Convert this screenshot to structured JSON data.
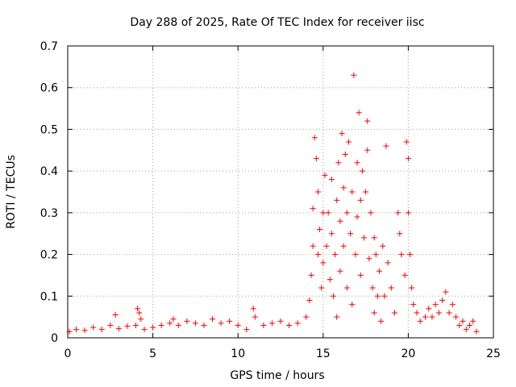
{
  "chart_data": {
    "type": "scatter",
    "title": "Day 288 of 2025, Rate Of TEC Index for receiver iisc",
    "xlabel": "GPS time / hours",
    "ylabel": "ROTI / TECUs",
    "xlim": [
      0,
      25
    ],
    "ylim": [
      0,
      0.7
    ],
    "xticks": [
      "0",
      "5",
      "10",
      "15",
      "20",
      "25"
    ],
    "yticks": [
      "0",
      "0.1",
      "0.2",
      "0.3",
      "0.4",
      "0.5",
      "0.6",
      "0.7"
    ],
    "grid": true,
    "marker": "+",
    "color": "#ff0000",
    "series": [
      {
        "name": "ROTI",
        "points": [
          [
            0.1,
            0.015
          ],
          [
            0.5,
            0.02
          ],
          [
            1.0,
            0.018
          ],
          [
            1.5,
            0.025
          ],
          [
            2.0,
            0.02
          ],
          [
            2.5,
            0.03
          ],
          [
            2.8,
            0.055
          ],
          [
            3.0,
            0.022
          ],
          [
            3.5,
            0.028
          ],
          [
            4.0,
            0.03
          ],
          [
            4.1,
            0.07
          ],
          [
            4.2,
            0.06
          ],
          [
            4.3,
            0.045
          ],
          [
            4.5,
            0.02
          ],
          [
            5.0,
            0.025
          ],
          [
            5.5,
            0.03
          ],
          [
            6.0,
            0.035
          ],
          [
            6.2,
            0.045
          ],
          [
            6.5,
            0.03
          ],
          [
            7.0,
            0.04
          ],
          [
            7.5,
            0.035
          ],
          [
            8.0,
            0.03
          ],
          [
            8.5,
            0.045
          ],
          [
            9.0,
            0.035
          ],
          [
            9.5,
            0.04
          ],
          [
            10.0,
            0.03
          ],
          [
            10.5,
            0.02
          ],
          [
            10.9,
            0.07
          ],
          [
            11.0,
            0.05
          ],
          [
            11.5,
            0.03
          ],
          [
            12.0,
            0.035
          ],
          [
            12.5,
            0.04
          ],
          [
            13.0,
            0.03
          ],
          [
            13.5,
            0.035
          ],
          [
            14.0,
            0.05
          ],
          [
            14.2,
            0.09
          ],
          [
            14.3,
            0.15
          ],
          [
            14.4,
            0.22
          ],
          [
            14.4,
            0.31
          ],
          [
            14.5,
            0.48
          ],
          [
            14.6,
            0.43
          ],
          [
            14.7,
            0.35
          ],
          [
            14.7,
            0.2
          ],
          [
            14.8,
            0.26
          ],
          [
            14.9,
            0.12
          ],
          [
            15.0,
            0.3
          ],
          [
            15.0,
            0.18
          ],
          [
            15.1,
            0.39
          ],
          [
            15.2,
            0.22
          ],
          [
            15.3,
            0.3
          ],
          [
            15.4,
            0.14
          ],
          [
            15.5,
            0.25
          ],
          [
            15.5,
            0.38
          ],
          [
            15.6,
            0.1
          ],
          [
            15.7,
            0.2
          ],
          [
            15.8,
            0.33
          ],
          [
            15.8,
            0.05
          ],
          [
            15.9,
            0.42
          ],
          [
            16.0,
            0.28
          ],
          [
            16.0,
            0.16
          ],
          [
            16.1,
            0.49
          ],
          [
            16.2,
            0.36
          ],
          [
            16.2,
            0.22
          ],
          [
            16.3,
            0.44
          ],
          [
            16.4,
            0.3
          ],
          [
            16.4,
            0.12
          ],
          [
            16.5,
            0.47
          ],
          [
            16.6,
            0.25
          ],
          [
            16.7,
            0.08
          ],
          [
            16.7,
            0.35
          ],
          [
            16.8,
            0.63
          ],
          [
            16.9,
            0.2
          ],
          [
            17.0,
            0.42
          ],
          [
            17.0,
            0.29
          ],
          [
            17.1,
            0.54
          ],
          [
            17.2,
            0.33
          ],
          [
            17.2,
            0.15
          ],
          [
            17.3,
            0.4
          ],
          [
            17.4,
            0.24
          ],
          [
            17.5,
            0.35
          ],
          [
            17.6,
            0.52
          ],
          [
            17.6,
            0.45
          ],
          [
            17.7,
            0.19
          ],
          [
            17.8,
            0.3
          ],
          [
            17.9,
            0.12
          ],
          [
            18.0,
            0.24
          ],
          [
            18.0,
            0.06
          ],
          [
            18.1,
            0.2
          ],
          [
            18.2,
            0.1
          ],
          [
            18.3,
            0.16
          ],
          [
            18.4,
            0.04
          ],
          [
            18.5,
            0.22
          ],
          [
            18.6,
            0.1
          ],
          [
            18.7,
            0.46
          ],
          [
            18.8,
            0.18
          ],
          [
            19.0,
            0.12
          ],
          [
            19.2,
            0.06
          ],
          [
            19.4,
            0.3
          ],
          [
            19.5,
            0.25
          ],
          [
            19.6,
            0.2
          ],
          [
            19.8,
            0.15
          ],
          [
            19.9,
            0.47
          ],
          [
            20.0,
            0.43
          ],
          [
            20.0,
            0.3
          ],
          [
            20.1,
            0.2
          ],
          [
            20.2,
            0.12
          ],
          [
            20.3,
            0.08
          ],
          [
            20.5,
            0.06
          ],
          [
            20.7,
            0.04
          ],
          [
            21.0,
            0.05
          ],
          [
            21.2,
            0.07
          ],
          [
            21.4,
            0.05
          ],
          [
            21.6,
            0.08
          ],
          [
            21.8,
            0.06
          ],
          [
            22.0,
            0.09
          ],
          [
            22.2,
            0.11
          ],
          [
            22.4,
            0.06
          ],
          [
            22.6,
            0.08
          ],
          [
            22.8,
            0.05
          ],
          [
            23.0,
            0.03
          ],
          [
            23.2,
            0.04
          ],
          [
            23.4,
            0.02
          ],
          [
            23.6,
            0.03
          ],
          [
            23.8,
            0.04
          ],
          [
            24.0,
            0.015
          ]
        ]
      }
    ]
  }
}
